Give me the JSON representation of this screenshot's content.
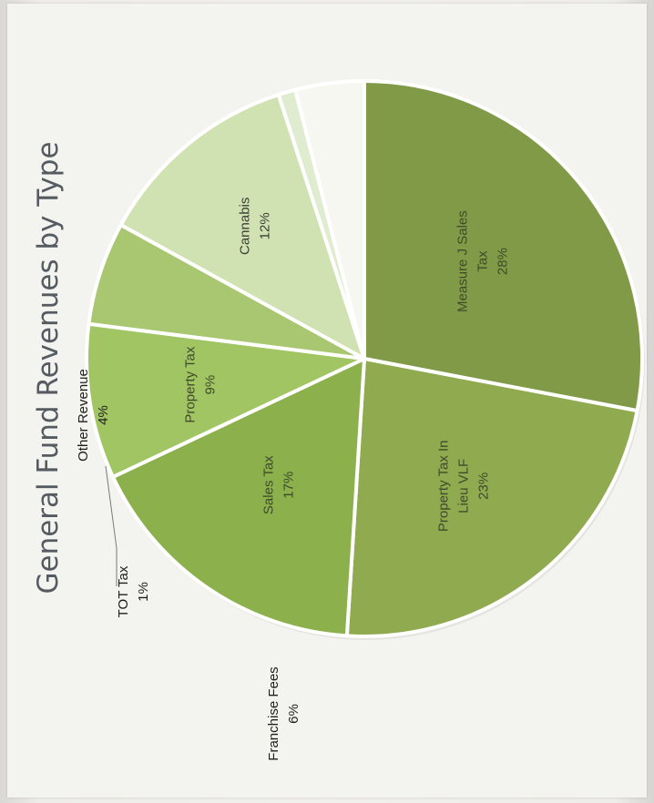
{
  "colors": {
    "page_background": "#f3f3f0",
    "title_color": "#555b60",
    "leader_line": "#7a7a7a"
  },
  "chart_data": {
    "type": "pie",
    "title": "General Fund Revenues by Type",
    "orientation": "rotated 90 degrees counter-clockwise",
    "slices": [
      {
        "label": "Measure J Sales Tax",
        "value": 28,
        "display": "28%",
        "color": "#809a48"
      },
      {
        "label": "Property Tax In Lieu VLF",
        "value": 23,
        "display": "23%",
        "color": "#8faa4f"
      },
      {
        "label": "Sales Tax",
        "value": 17,
        "display": "17%",
        "color": "#8cb04c"
      },
      {
        "label": "Property Tax",
        "value": 9,
        "display": "9%",
        "color": "#a1c563"
      },
      {
        "label": "Franchise Fees",
        "value": 6,
        "display": "6%",
        "color": "#a9c770"
      },
      {
        "label": "Cannabis",
        "value": 12,
        "display": "12%",
        "color": "#d1e2b2"
      },
      {
        "label": "TOT Tax",
        "value": 1,
        "display": "1%",
        "color": "#e0eccf"
      },
      {
        "label": "Other Revenue",
        "value": 4,
        "display": "4%",
        "color": "#f5f7f0"
      }
    ]
  }
}
